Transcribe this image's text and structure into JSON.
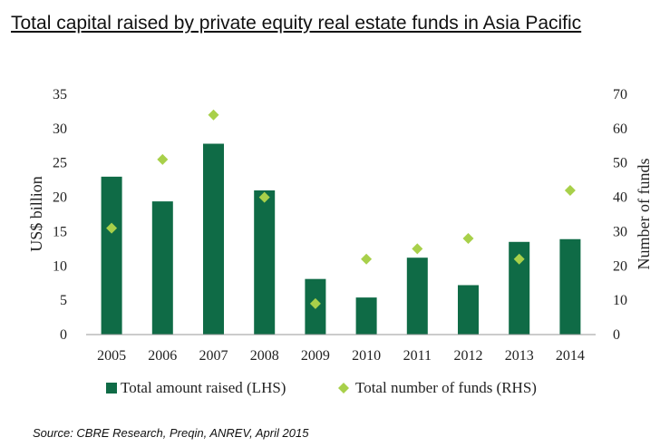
{
  "title": "Total capital raised by private equity real estate funds in Asia Pacific",
  "source": "Source: CBRE Research, Preqin, ANREV, April 2015",
  "colors": {
    "bar": "#0f6b46",
    "diamond": "#a8d04a"
  },
  "chart_data": {
    "type": "bar",
    "title": "Total capital raised by private equity real estate funds in Asia Pacific",
    "categories": [
      "2005",
      "2006",
      "2007",
      "2008",
      "2009",
      "2010",
      "2011",
      "2012",
      "2013",
      "2014"
    ],
    "ylabel": "US$ billion",
    "y2label": "Number of funds",
    "ylim": [
      0,
      35
    ],
    "y2lim": [
      0,
      70
    ],
    "yticks": [
      "0",
      "5",
      "10",
      "15",
      "20",
      "25",
      "30",
      "35"
    ],
    "y2ticks": [
      "0",
      "10",
      "20",
      "30",
      "40",
      "50",
      "60",
      "70"
    ],
    "legend_position": "bottom",
    "series": [
      {
        "name": "Total amount raised (LHS)",
        "type": "bar",
        "axis": "left",
        "values": [
          23.0,
          19.4,
          27.8,
          21.0,
          8.1,
          5.4,
          11.2,
          7.2,
          13.5,
          13.9
        ]
      },
      {
        "name": "Total number of funds (RHS)",
        "type": "scatter",
        "marker": "diamond",
        "axis": "right",
        "values": [
          31,
          51,
          64,
          40,
          9,
          22,
          25,
          28,
          22,
          42
        ]
      }
    ]
  }
}
